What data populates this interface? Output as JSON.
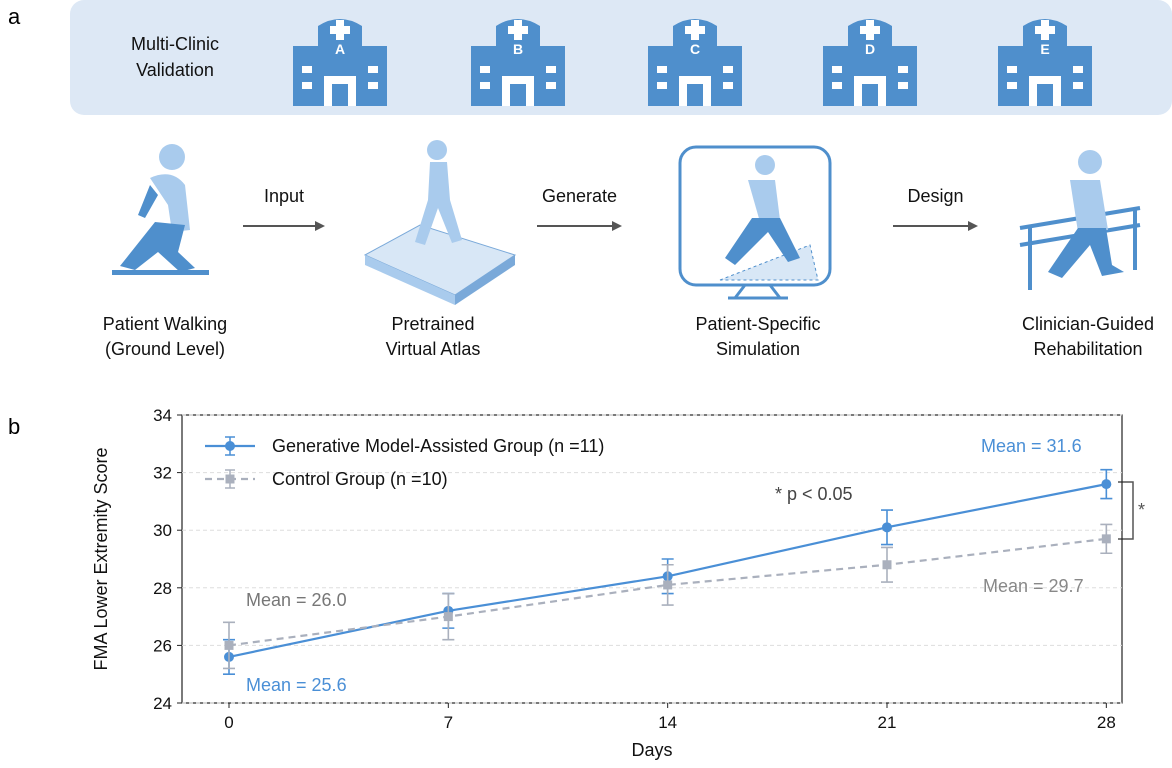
{
  "panel_a": {
    "label": "a",
    "banner": {
      "title_lines": [
        "Multi-Clinic",
        "Validation"
      ],
      "clinics": [
        "A",
        "B",
        "C",
        "D",
        "E"
      ]
    },
    "steps": [
      [
        "Patient Walking",
        "(Ground Level)"
      ],
      [
        "Pretrained",
        "Virtual Atlas"
      ],
      [
        "Patient-Specific",
        "Simulation"
      ],
      [
        "Clinician-Guided",
        "Rehabilitation"
      ]
    ],
    "arrows": [
      "Input",
      "Generate",
      "Design"
    ]
  },
  "chart_data": {
    "type": "line",
    "label": "b",
    "x_label": "Days",
    "y_label": "FMA Lower Extremity Score",
    "x": [
      0,
      7,
      14,
      21,
      28
    ],
    "series": [
      {
        "name": "Generative Model-Assisted Group (n =11)",
        "color": "#4a8fd6",
        "dashed": false,
        "marker": "circle",
        "values": [
          25.6,
          27.2,
          28.4,
          30.1,
          31.6
        ],
        "errors": [
          0.6,
          0.6,
          0.6,
          0.6,
          0.5
        ]
      },
      {
        "name": "Control Group (n =10)",
        "color": "#aab0bd",
        "dashed": true,
        "marker": "square",
        "values": [
          26.0,
          27.0,
          28.1,
          28.8,
          29.7
        ],
        "errors": [
          0.8,
          0.8,
          0.7,
          0.6,
          0.5
        ]
      }
    ],
    "xlim": [
      -1.5,
      28.5
    ],
    "ylim": [
      24,
      34
    ],
    "xticks": [
      0,
      7,
      14,
      21,
      28
    ],
    "yticks": [
      24,
      26,
      28,
      30,
      32,
      34
    ],
    "grid": true,
    "annotations": [
      "Mean = 25.6",
      "Mean = 26.0",
      "Mean = 29.7",
      "Mean = 31.6",
      "* p < 0.05"
    ],
    "significance": "*"
  }
}
